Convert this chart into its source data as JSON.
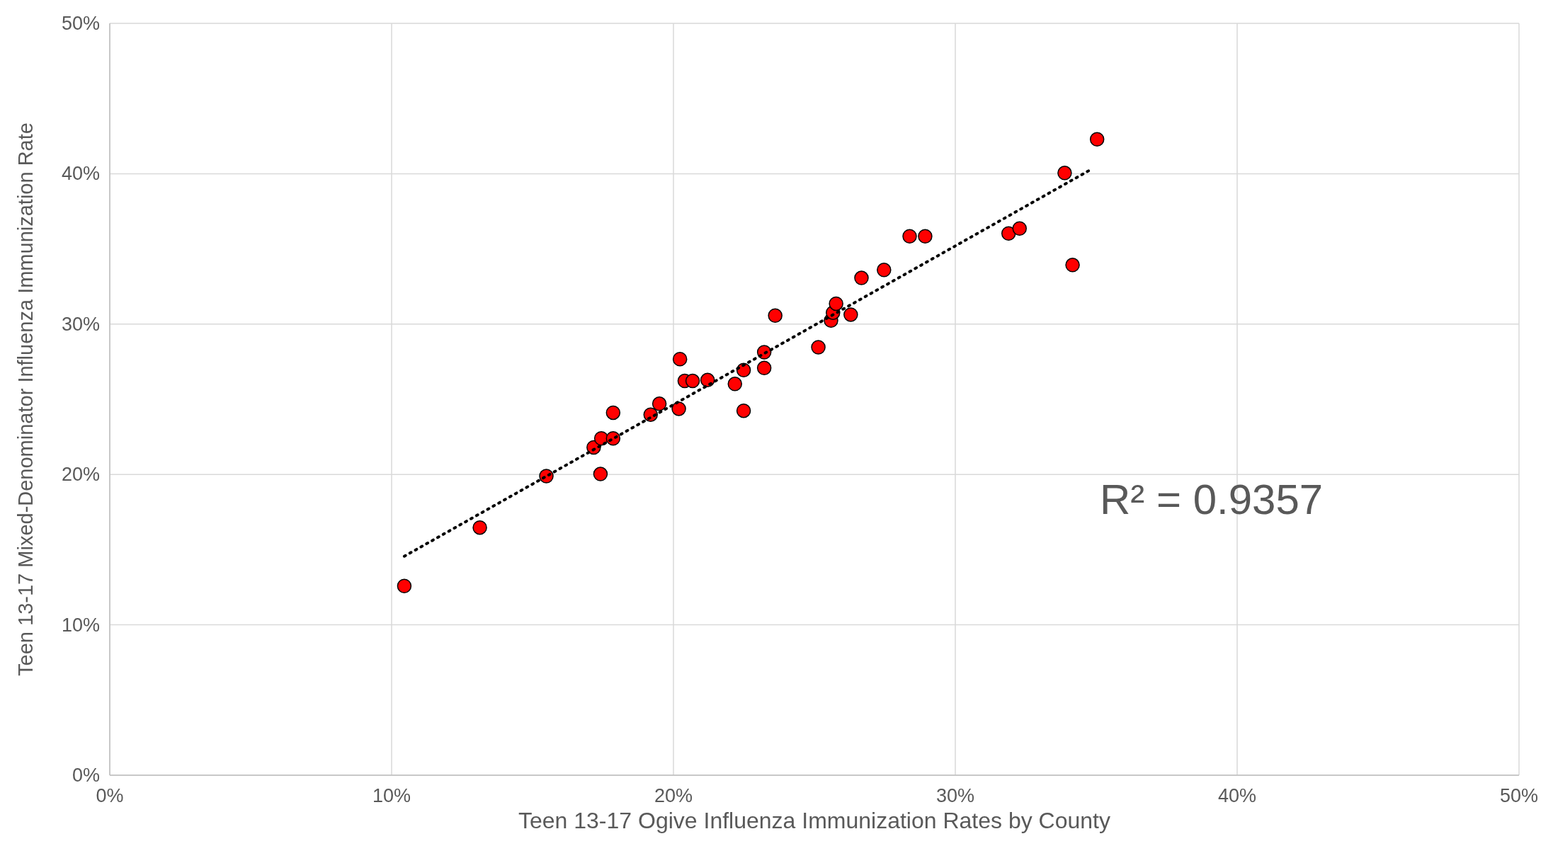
{
  "chart_data": {
    "type": "scatter",
    "xlabel": "Teen 13-17 Ogive Influenza Immunization Rates by County",
    "ylabel": "Teen 13-17 Mixed-Denominator Influenza Immunization Rate",
    "xlim": [
      0,
      50
    ],
    "ylim": [
      0,
      50
    ],
    "xticks": [
      {
        "value": 0,
        "label": "0%"
      },
      {
        "value": 10,
        "label": "10%"
      },
      {
        "value": 20,
        "label": "20%"
      },
      {
        "value": 30,
        "label": "30%"
      },
      {
        "value": 40,
        "label": "40%"
      },
      {
        "value": 50,
        "label": "50%"
      }
    ],
    "yticks": [
      {
        "value": 0,
        "label": "0%"
      },
      {
        "value": 10,
        "label": "10%"
      },
      {
        "value": 20,
        "label": "20%"
      },
      {
        "value": 30,
        "label": "30%"
      },
      {
        "value": 40,
        "label": "40%"
      },
      {
        "value": 50,
        "label": "50%"
      }
    ],
    "grid": true,
    "marker": "circle",
    "annotations": [
      "R² = 0.9357"
    ],
    "series": [
      {
        "color": "#ff0000",
        "x": [
          10.45,
          13.13,
          15.49,
          17.41,
          17.17,
          17.44,
          17.86,
          17.86,
          19.19,
          19.5,
          20.19,
          20.23,
          20.4,
          20.68,
          21.21,
          22.18,
          22.49,
          22.49,
          23.22,
          23.22,
          23.61,
          25.14,
          25.59,
          25.66,
          25.77,
          26.29,
          26.67,
          27.47,
          28.38,
          28.93,
          31.89,
          32.28,
          33.88,
          34.16,
          35.03
        ],
        "values": [
          12.58,
          16.47,
          19.89,
          20.03,
          21.8,
          22.4,
          22.4,
          24.11,
          23.98,
          24.7,
          24.37,
          27.67,
          26.22,
          26.22,
          26.28,
          26.02,
          24.24,
          26.94,
          27.08,
          28.13,
          30.57,
          28.46,
          30.24,
          30.76,
          31.36,
          30.63,
          33.07,
          33.6,
          35.84,
          35.84,
          36.03,
          36.36,
          40.05,
          33.93,
          42.29
        ]
      },
      {
        "type": "line",
        "color": "#000000",
        "line_style": "dotted",
        "marker": "none",
        "x": [
          10.45,
          34.85
        ],
        "values": [
          14.56,
          40.32
        ]
      }
    ]
  }
}
